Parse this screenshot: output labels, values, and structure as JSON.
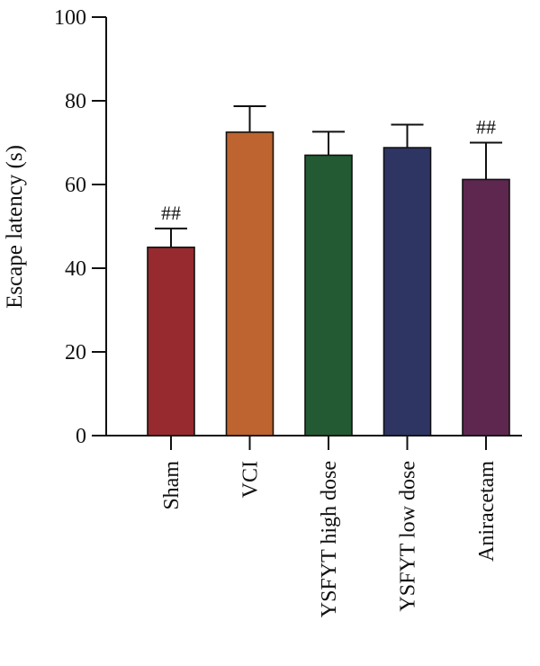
{
  "chart_data": {
    "type": "bar",
    "ylabel": "Escape latency (s)",
    "xlabel": "",
    "ylim": [
      0,
      100
    ],
    "yticks": [
      0,
      20,
      40,
      60,
      80,
      100
    ],
    "categories": [
      "Sham",
      "VCI",
      "YSFYT high dose",
      "YSFYT low dose",
      "Aniracetam"
    ],
    "values": [
      45,
      72.5,
      67,
      68.8,
      61.2
    ],
    "errors": [
      4.5,
      6.2,
      5.6,
      5.5,
      8.8
    ],
    "colors": [
      "#962a2e",
      "#bd6430",
      "#235a33",
      "#2e3563",
      "#5e2750"
    ],
    "annotations": [
      "##",
      "",
      "",
      "",
      "##"
    ],
    "grid": false,
    "legend": "none"
  }
}
